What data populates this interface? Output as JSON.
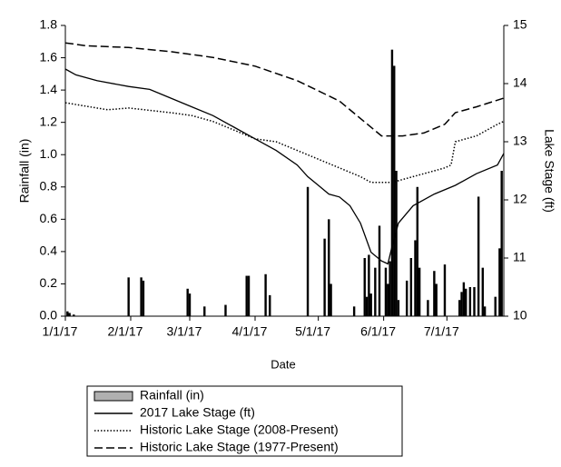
{
  "chart_data": {
    "type": "bar-line",
    "x_label": "Date",
    "y_label": "Rainfall (in)",
    "y2_label": "Lake Stage (ft)",
    "xlim": [
      0,
      208
    ],
    "xticks": [
      {
        "value": 0,
        "label": "1/1/17"
      },
      {
        "value": 31,
        "label": "2/1/17"
      },
      {
        "value": 59,
        "label": "3/1/17"
      },
      {
        "value": 90,
        "label": "4/1/17"
      },
      {
        "value": 120,
        "label": "5/1/17"
      },
      {
        "value": 151,
        "label": "6/1/17"
      },
      {
        "value": 181,
        "label": "7/1/17"
      }
    ],
    "ylim": [
      0,
      1.8
    ],
    "yticks": [
      {
        "value": 0,
        "label": "0.0"
      },
      0.2,
      0.4,
      0.6,
      0.8,
      {
        "value": 1,
        "label": "1.0"
      },
      1.2,
      1.4,
      1.6,
      1.8
    ],
    "y2lim": [
      10,
      15
    ],
    "y2ticks": [
      10,
      11,
      12,
      13,
      14,
      15
    ],
    "series": [
      {
        "name": "Rainfall (in)",
        "type": "bar",
        "color": "#000000",
        "legend_fill": "#b0b0b0",
        "x": [
          1,
          2,
          4,
          30,
          36,
          37,
          58,
          59,
          66,
          76,
          86,
          87,
          95,
          97,
          115,
          123,
          125,
          126,
          137,
          142,
          143,
          144,
          145,
          147,
          149,
          152,
          153,
          154,
          155,
          156,
          157,
          158,
          162,
          164,
          166,
          167,
          168,
          172,
          175,
          176,
          180,
          187,
          188,
          189,
          190,
          192,
          194,
          196,
          198,
          199,
          204,
          206,
          207
        ],
        "values": [
          0.03,
          0.02,
          0.01,
          0.24,
          0.24,
          0.22,
          0.17,
          0.14,
          0.06,
          0.07,
          0.25,
          0.25,
          0.26,
          0.13,
          0.8,
          0.48,
          0.6,
          0.2,
          0.06,
          0.36,
          0.12,
          0.38,
          0.14,
          0.3,
          0.56,
          0.3,
          0.2,
          0.34,
          1.65,
          1.55,
          0.9,
          0.1,
          0.22,
          0.36,
          0.47,
          0.8,
          0.3,
          0.1,
          0.28,
          0.2,
          0.32,
          0.1,
          0.15,
          0.21,
          0.17,
          0.18,
          0.18,
          0.74,
          0.3,
          0.06,
          0.12,
          0.42,
          0.9
        ]
      },
      {
        "name": "2017 Lake Stage (ft)",
        "type": "line",
        "axis": "y2",
        "color": "#000000",
        "dash": "solid",
        "x": [
          0,
          5,
          15,
          30,
          40,
          50,
          60,
          70,
          80,
          90,
          100,
          110,
          115,
          120,
          125,
          130,
          135,
          140,
          145,
          150,
          153,
          155,
          158,
          165,
          175,
          185,
          195,
          205,
          208
        ],
        "values": [
          14.25,
          14.15,
          14.05,
          13.95,
          13.9,
          13.75,
          13.6,
          13.45,
          13.25,
          13.05,
          12.85,
          12.6,
          12.4,
          12.25,
          12.1,
          12.05,
          11.9,
          11.6,
          11.1,
          10.95,
          10.9,
          11.2,
          11.6,
          11.9,
          12.1,
          12.25,
          12.45,
          12.6,
          12.8
        ]
      },
      {
        "name": "Historic Lake Stage (2008-Present)",
        "type": "line",
        "axis": "y2",
        "color": "#000000",
        "dash": "dotted",
        "x": [
          0,
          20,
          30,
          50,
          60,
          70,
          80,
          90,
          100,
          110,
          120,
          130,
          140,
          145,
          155,
          165,
          180,
          183,
          185,
          195,
          205,
          208
        ],
        "values": [
          13.67,
          13.55,
          13.58,
          13.5,
          13.45,
          13.35,
          13.2,
          13.05,
          13.0,
          12.85,
          12.7,
          12.55,
          12.4,
          12.3,
          12.3,
          12.4,
          12.55,
          12.6,
          13.0,
          13.1,
          13.3,
          13.35
        ]
      },
      {
        "name": "Historic Lake Stage (1977-Present)",
        "type": "line",
        "axis": "y2",
        "color": "#000000",
        "dash": "dashed",
        "x": [
          0,
          10,
          30,
          50,
          70,
          90,
          110,
          130,
          140,
          150,
          160,
          170,
          180,
          185,
          195,
          208
        ],
        "values": [
          14.7,
          14.65,
          14.62,
          14.55,
          14.45,
          14.3,
          14.05,
          13.7,
          13.4,
          13.1,
          13.1,
          13.15,
          13.3,
          13.5,
          13.6,
          13.75
        ]
      }
    ]
  }
}
